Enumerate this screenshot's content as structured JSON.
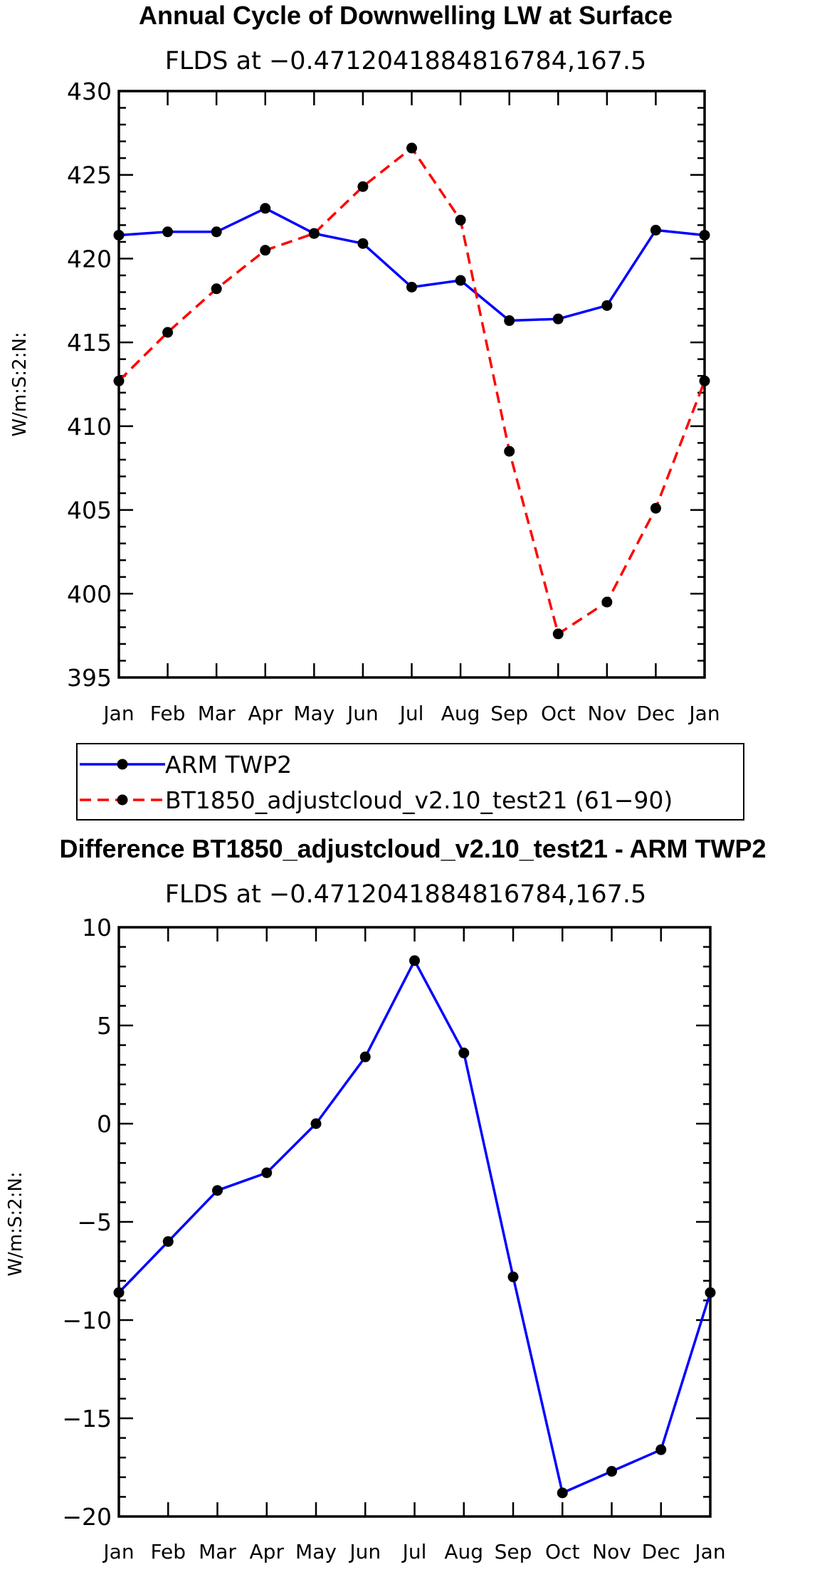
{
  "colors": {
    "arm": "#0000ff",
    "model": "#ff0000",
    "marker": "#000000",
    "axis": "#000000"
  },
  "chart_data": [
    {
      "type": "line",
      "title": "Annual Cycle of Downwelling LW at Surface",
      "subtitle": "FLDS at −0.4712041884816784,167.5",
      "ylabel": "W/m:S:2:N:",
      "xlabel": "",
      "ylim": [
        395,
        430
      ],
      "yticks": [
        395,
        400,
        405,
        410,
        415,
        420,
        425,
        430
      ],
      "categories": [
        "Jan",
        "Feb",
        "Mar",
        "Apr",
        "May",
        "Jun",
        "Jul",
        "Aug",
        "Sep",
        "Oct",
        "Nov",
        "Dec",
        "Jan"
      ],
      "series": [
        {
          "name": "ARM TWP2",
          "style": "solid",
          "color": "#0000ff",
          "values": [
            421.4,
            421.6,
            421.6,
            423.0,
            421.5,
            420.9,
            418.3,
            418.7,
            416.3,
            416.4,
            417.2,
            421.7,
            421.4
          ]
        },
        {
          "name": "BT1850_adjustcloud_v2.10_test21 (61−90)",
          "style": "dashed",
          "color": "#ff0000",
          "values": [
            412.7,
            415.6,
            418.2,
            420.5,
            421.5,
            424.3,
            426.6,
            422.3,
            408.5,
            397.6,
            399.5,
            405.1,
            412.7
          ]
        }
      ],
      "legend_position": "below"
    },
    {
      "type": "line",
      "title": "Difference BT1850_adjustcloud_v2.10_test21 - ARM TWP2",
      "subtitle": "FLDS at −0.4712041884816784,167.5",
      "ylabel": "W/m:S:2:N:",
      "xlabel": "",
      "ylim": [
        -20,
        10
      ],
      "yticks": [
        -20,
        -15,
        -10,
        -5,
        0,
        5,
        10
      ],
      "ytick_labels": [
        "−20",
        "−15",
        "−10",
        "−5",
        "0",
        "5",
        "10"
      ],
      "categories": [
        "Jan",
        "Feb",
        "Mar",
        "Apr",
        "May",
        "Jun",
        "Jul",
        "Aug",
        "Sep",
        "Oct",
        "Nov",
        "Dec",
        "Jan"
      ],
      "series": [
        {
          "style": "solid",
          "color": "#0000ff",
          "values": [
            -8.6,
            -6.0,
            -3.4,
            -2.5,
            0.0,
            3.4,
            8.3,
            3.6,
            -7.8,
            -18.8,
            -17.7,
            -16.6,
            -8.6
          ]
        }
      ]
    }
  ]
}
